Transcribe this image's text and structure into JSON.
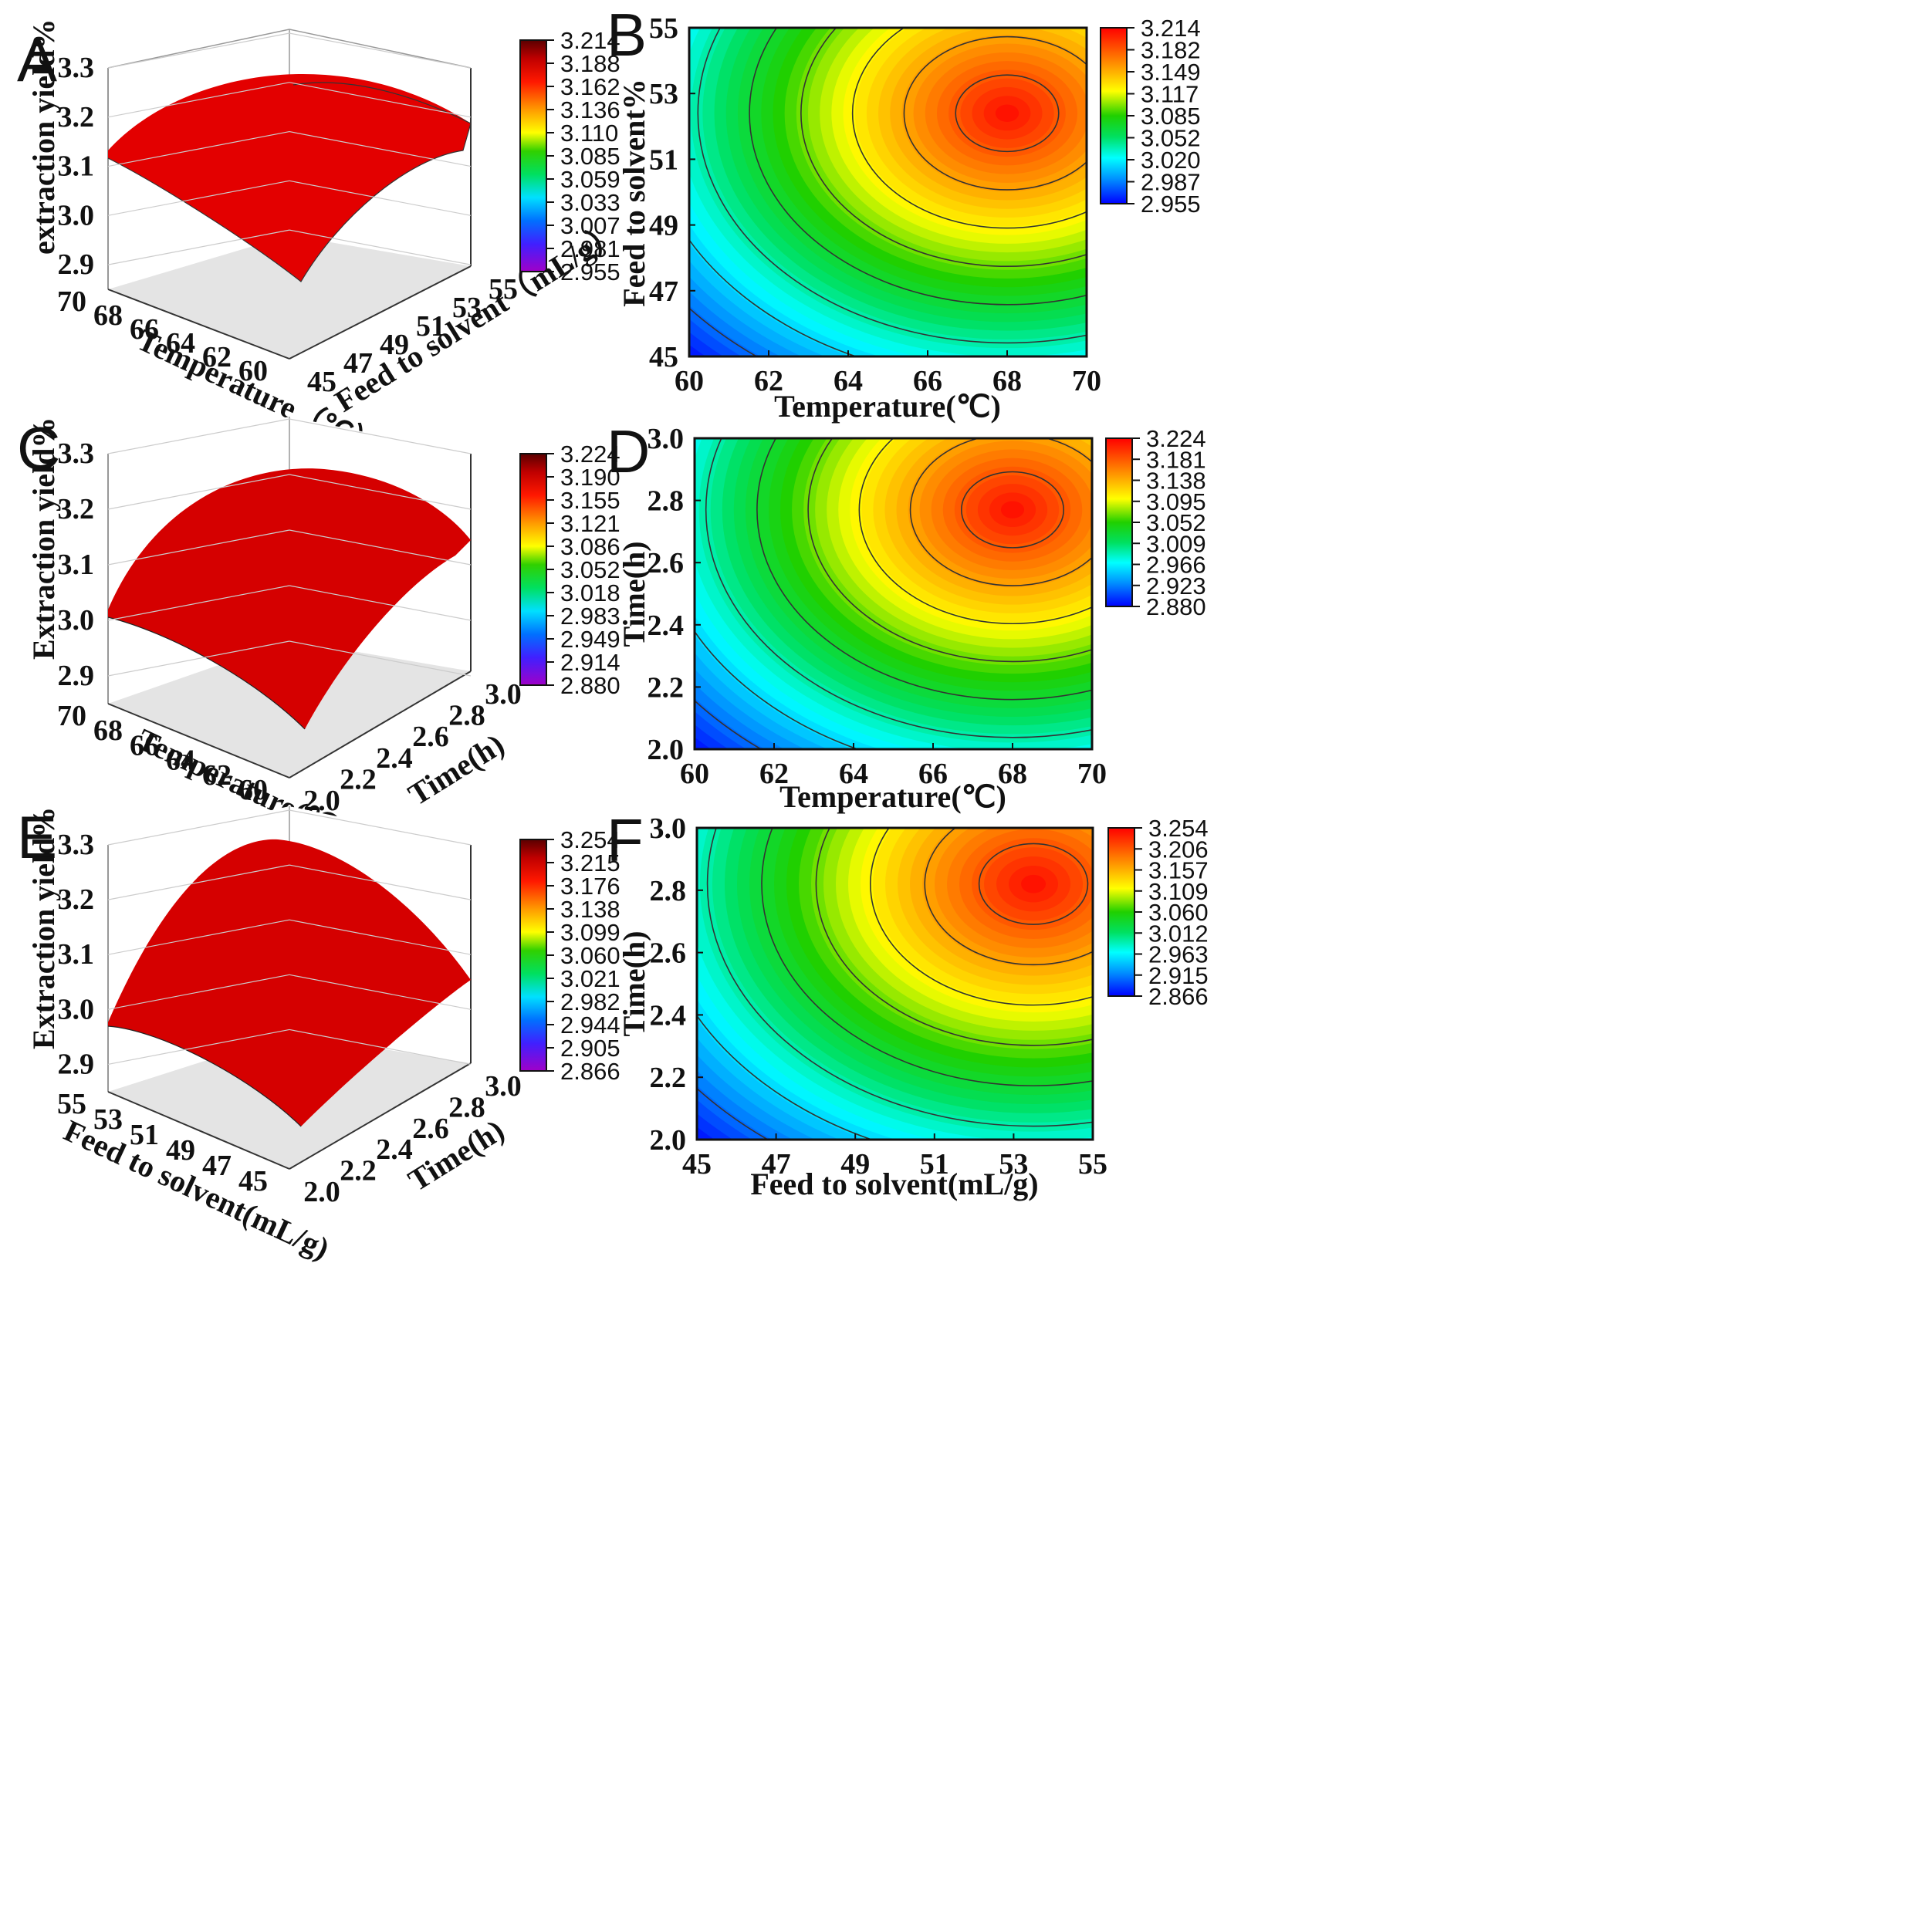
{
  "figure": {
    "panel_labels": [
      "A",
      "B",
      "C",
      "D",
      "E",
      "F"
    ]
  },
  "chart_data": [
    {
      "panel": "A",
      "type": "surface3d",
      "x_label": "Temperature（℃）",
      "x_ticks": [
        "60",
        "62",
        "64",
        "66",
        "68",
        "70"
      ],
      "x_range": [
        60,
        70
      ],
      "y_label": "Feed to solvent（mL/g）",
      "y_ticks": [
        "45",
        "47",
        "49",
        "51",
        "53",
        "55"
      ],
      "y_range": [
        45,
        55
      ],
      "z_label": "extraction yield%",
      "z_ticks": [
        "2.9",
        "3.0",
        "3.1",
        "3.2",
        "3.3"
      ],
      "z_range": [
        2.85,
        3.3
      ],
      "colorbar_ticks": [
        "3.214",
        "3.188",
        "3.162",
        "3.136",
        "3.110",
        "3.085",
        "3.059",
        "3.033",
        "3.007",
        "2.981",
        "2.955"
      ],
      "z_min": 2.955,
      "z_max": 3.214,
      "grid": true
    },
    {
      "panel": "B",
      "type": "contour",
      "x_label": "Temperature(℃)",
      "x_ticks": [
        "60",
        "62",
        "64",
        "66",
        "68",
        "70"
      ],
      "x_range": [
        60,
        70
      ],
      "y_label": "Feed to solvent%",
      "y_ticks": [
        "45",
        "47",
        "49",
        "51",
        "53",
        "55"
      ],
      "y_range": [
        45,
        55
      ],
      "colorbar_ticks": [
        "3.214",
        "3.182",
        "3.149",
        "3.117",
        "3.085",
        "3.052",
        "3.020",
        "2.987",
        "2.955"
      ],
      "z_min": 2.955,
      "z_max": 3.214,
      "optimum": [
        68,
        52.4
      ],
      "contour_lines": 9
    },
    {
      "panel": "C",
      "type": "surface3d",
      "x_label": "Temperature(℃)",
      "x_ticks": [
        "60",
        "62",
        "64",
        "66",
        "68",
        "70"
      ],
      "x_range": [
        60,
        70
      ],
      "y_label": "Time(h)",
      "y_ticks": [
        "2.0",
        "2.2",
        "2.4",
        "2.6",
        "2.8",
        "3.0"
      ],
      "y_range": [
        2.0,
        3.0
      ],
      "z_label": "Extraction yield%",
      "z_ticks": [
        "2.9",
        "3.0",
        "3.1",
        "3.2",
        "3.3"
      ],
      "z_range": [
        2.85,
        3.3
      ],
      "colorbar_ticks": [
        "3.224",
        "3.190",
        "3.155",
        "3.121",
        "3.086",
        "3.052",
        "3.018",
        "2.983",
        "2.949",
        "2.914",
        "2.880"
      ],
      "z_min": 2.88,
      "z_max": 3.224,
      "grid": true
    },
    {
      "panel": "D",
      "type": "contour",
      "x_label": "Temperature(℃)",
      "x_ticks": [
        "60",
        "62",
        "64",
        "66",
        "68",
        "70"
      ],
      "x_range": [
        60,
        70
      ],
      "y_label": "Time(h)",
      "y_ticks": [
        "2.0",
        "2.2",
        "2.4",
        "2.6",
        "2.8",
        "3.0"
      ],
      "y_range": [
        2.0,
        3.0
      ],
      "colorbar_ticks": [
        "3.224",
        "3.181",
        "3.138",
        "3.095",
        "3.052",
        "3.009",
        "2.966",
        "2.923",
        "2.880"
      ],
      "z_min": 2.88,
      "z_max": 3.224,
      "optimum": [
        68,
        2.77
      ],
      "contour_lines": 9
    },
    {
      "panel": "E",
      "type": "surface3d",
      "x_label": "Feed to solvent(mL/g)",
      "x_ticks": [
        "45",
        "47",
        "49",
        "51",
        "53",
        "55"
      ],
      "x_range": [
        45,
        55
      ],
      "y_label": "Time(h)",
      "y_ticks": [
        "2.0",
        "2.2",
        "2.4",
        "2.6",
        "2.8",
        "3.0"
      ],
      "y_range": [
        2.0,
        3.0
      ],
      "z_label": "Extraction yield%",
      "z_ticks": [
        "2.9",
        "3.0",
        "3.1",
        "3.2",
        "3.3"
      ],
      "z_range": [
        2.85,
        3.3
      ],
      "colorbar_ticks": [
        "3.254",
        "3.215",
        "3.176",
        "3.138",
        "3.099",
        "3.060",
        "3.021",
        "2.982",
        "2.944",
        "2.905",
        "2.866"
      ],
      "z_min": 2.866,
      "z_max": 3.254,
      "grid": true
    },
    {
      "panel": "F",
      "type": "contour",
      "x_label": "Feed to solvent(mL/g)",
      "x_ticks": [
        "45",
        "47",
        "49",
        "51",
        "53",
        "55"
      ],
      "x_range": [
        45,
        55
      ],
      "y_label": "Time(h)",
      "y_ticks": [
        "2.0",
        "2.2",
        "2.4",
        "2.6",
        "2.8",
        "3.0"
      ],
      "y_range": [
        2.0,
        3.0
      ],
      "colorbar_ticks": [
        "3.254",
        "3.206",
        "3.157",
        "3.109",
        "3.060",
        "3.012",
        "2.963",
        "2.915",
        "2.866"
      ],
      "z_min": 2.866,
      "z_max": 3.254,
      "optimum": [
        53.5,
        2.82
      ],
      "contour_lines": 9
    }
  ]
}
